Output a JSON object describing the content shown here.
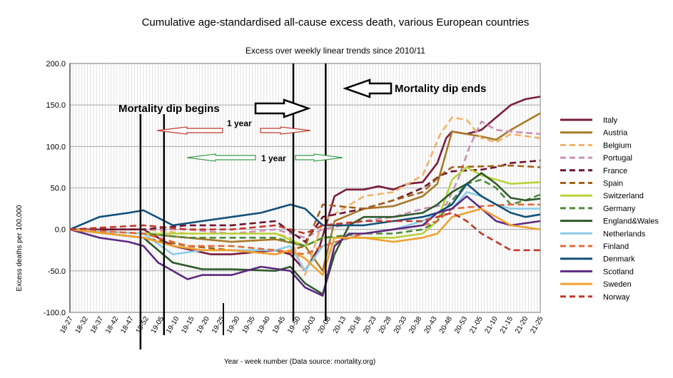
{
  "chart_data": {
    "type": "line",
    "title": "Cumulative age-standardised all-cause excess death, various European countries",
    "subtitle": "Excess over weekly linear trends since 2010/11",
    "ylabel": "Excess deaths per 100,000",
    "xlabel": "Year - week number   (Data source: mortality.org)",
    "ylim": [
      -100,
      200
    ],
    "y_ticks": [
      "200.0",
      "150.0",
      "100.0",
      "50.0",
      "0.0",
      "-50.0",
      "-100.0"
    ],
    "x_tick_labels": [
      "18-27",
      "18-32",
      "18-37",
      "18-42",
      "18-47",
      "18-52",
      "19-05",
      "19-10",
      "19-15",
      "19-20",
      "19-25",
      "19-30",
      "19-35",
      "19-40",
      "19-45",
      "19-50",
      "20-03",
      "20-08",
      "20-13",
      "20-18",
      "20-23",
      "20-28",
      "20-33",
      "20-38",
      "20-43",
      "20-48",
      "20-53",
      "21-05",
      "21-10",
      "21-15",
      "21-20",
      "21-25"
    ],
    "grid": true,
    "legend_position": "right",
    "annotations": {
      "dip_begins": "Mortality dip begins",
      "dip_ends": "Mortality dip ends",
      "one_year_a": "1 year",
      "one_year_b": "1 year"
    },
    "series": [
      {
        "name": "Italy",
        "color": "#7b1c3e",
        "dash": false,
        "points": [
          [
            0,
            0
          ],
          [
            25,
            0
          ],
          [
            35,
            -20
          ],
          [
            48,
            -30
          ],
          [
            55,
            -30
          ],
          [
            70,
            -25
          ],
          [
            75,
            -30
          ],
          [
            80,
            -50
          ],
          [
            85,
            -20
          ],
          [
            90,
            40
          ],
          [
            94,
            48
          ],
          [
            100,
            48
          ],
          [
            105,
            52
          ],
          [
            110,
            48
          ],
          [
            115,
            55
          ],
          [
            120,
            57
          ],
          [
            125,
            80
          ],
          [
            128,
            110
          ],
          [
            130,
            118
          ],
          [
            135,
            115
          ],
          [
            140,
            120
          ],
          [
            145,
            135
          ],
          [
            150,
            150
          ],
          [
            155,
            157
          ],
          [
            160,
            160
          ]
        ]
      },
      {
        "name": "Austria",
        "color": "#a87a28",
        "dash": false,
        "points": [
          [
            0,
            0
          ],
          [
            25,
            -5
          ],
          [
            40,
            -10
          ],
          [
            55,
            -15
          ],
          [
            70,
            -12
          ],
          [
            80,
            -20
          ],
          [
            86,
            -50
          ],
          [
            90,
            10
          ],
          [
            100,
            25
          ],
          [
            110,
            28
          ],
          [
            120,
            40
          ],
          [
            125,
            55
          ],
          [
            130,
            118
          ],
          [
            140,
            112
          ],
          [
            145,
            108
          ],
          [
            150,
            120
          ],
          [
            160,
            140
          ]
        ]
      },
      {
        "name": "Belgium",
        "color": "#f2b26a",
        "dash": true,
        "points": [
          [
            0,
            0
          ],
          [
            25,
            0
          ],
          [
            40,
            -5
          ],
          [
            55,
            -5
          ],
          [
            70,
            -5
          ],
          [
            75,
            -10
          ],
          [
            80,
            -55
          ],
          [
            86,
            10
          ],
          [
            100,
            40
          ],
          [
            110,
            45
          ],
          [
            120,
            65
          ],
          [
            126,
            115
          ],
          [
            130,
            135
          ],
          [
            135,
            132
          ],
          [
            140,
            110
          ],
          [
            145,
            105
          ],
          [
            150,
            115
          ],
          [
            160,
            110
          ]
        ]
      },
      {
        "name": "Portugal",
        "color": "#c991b6",
        "dash": true,
        "points": [
          [
            0,
            0
          ],
          [
            25,
            0
          ],
          [
            40,
            0
          ],
          [
            55,
            -5
          ],
          [
            70,
            0
          ],
          [
            80,
            -10
          ],
          [
            86,
            0
          ],
          [
            100,
            10
          ],
          [
            110,
            15
          ],
          [
            120,
            25
          ],
          [
            128,
            30
          ],
          [
            132,
            60
          ],
          [
            136,
            100
          ],
          [
            140,
            130
          ],
          [
            145,
            120
          ],
          [
            150,
            118
          ],
          [
            160,
            115
          ]
        ]
      },
      {
        "name": "France",
        "color": "#6e1430",
        "dash": true,
        "points": [
          [
            0,
            0
          ],
          [
            25,
            0
          ],
          [
            40,
            5
          ],
          [
            55,
            5
          ],
          [
            70,
            10
          ],
          [
            80,
            -15
          ],
          [
            86,
            15
          ],
          [
            100,
            25
          ],
          [
            110,
            35
          ],
          [
            120,
            50
          ],
          [
            126,
            65
          ],
          [
            130,
            70
          ],
          [
            140,
            72
          ],
          [
            145,
            75
          ],
          [
            150,
            80
          ],
          [
            160,
            83
          ]
        ]
      },
      {
        "name": "Spain",
        "color": "#a3621a",
        "dash": true,
        "points": [
          [
            0,
            0
          ],
          [
            25,
            -10
          ],
          [
            40,
            -20
          ],
          [
            55,
            -25
          ],
          [
            70,
            -30
          ],
          [
            80,
            -20
          ],
          [
            86,
            30
          ],
          [
            100,
            25
          ],
          [
            110,
            35
          ],
          [
            120,
            45
          ],
          [
            126,
            65
          ],
          [
            130,
            75
          ],
          [
            140,
            76
          ],
          [
            150,
            77
          ],
          [
            160,
            75
          ]
        ]
      },
      {
        "name": "Switzerland",
        "color": "#b8d33a",
        "dash": false,
        "points": [
          [
            0,
            0
          ],
          [
            25,
            -5
          ],
          [
            40,
            -5
          ],
          [
            55,
            -5
          ],
          [
            70,
            -5
          ],
          [
            80,
            -20
          ],
          [
            86,
            -10
          ],
          [
            100,
            -10
          ],
          [
            110,
            -10
          ],
          [
            120,
            -5
          ],
          [
            125,
            10
          ],
          [
            130,
            60
          ],
          [
            135,
            75
          ],
          [
            140,
            65
          ],
          [
            145,
            60
          ],
          [
            150,
            55
          ],
          [
            160,
            57
          ]
        ]
      },
      {
        "name": "Germany",
        "color": "#4e8a3a",
        "dash": true,
        "points": [
          [
            0,
            0
          ],
          [
            25,
            -5
          ],
          [
            40,
            -10
          ],
          [
            55,
            -10
          ],
          [
            70,
            -10
          ],
          [
            80,
            -20
          ],
          [
            86,
            -10
          ],
          [
            100,
            -5
          ],
          [
            110,
            -5
          ],
          [
            120,
            0
          ],
          [
            125,
            10
          ],
          [
            130,
            35
          ],
          [
            135,
            55
          ],
          [
            140,
            60
          ],
          [
            145,
            50
          ],
          [
            150,
            30
          ],
          [
            155,
            35
          ],
          [
            160,
            42
          ]
        ]
      },
      {
        "name": "England&Wales",
        "color": "#2e5a2a",
        "dash": false,
        "points": [
          [
            0,
            0
          ],
          [
            25,
            -10
          ],
          [
            35,
            -40
          ],
          [
            45,
            -48
          ],
          [
            55,
            -48
          ],
          [
            70,
            -50
          ],
          [
            75,
            -45
          ],
          [
            80,
            -65
          ],
          [
            86,
            -78
          ],
          [
            90,
            -30
          ],
          [
            95,
            5
          ],
          [
            100,
            15
          ],
          [
            110,
            15
          ],
          [
            120,
            20
          ],
          [
            125,
            30
          ],
          [
            130,
            45
          ],
          [
            135,
            55
          ],
          [
            140,
            68
          ],
          [
            145,
            55
          ],
          [
            150,
            38
          ],
          [
            155,
            35
          ],
          [
            160,
            37
          ]
        ]
      },
      {
        "name": "Netherlands",
        "color": "#8ecbe6",
        "dash": false,
        "points": [
          [
            0,
            0
          ],
          [
            25,
            -5
          ],
          [
            35,
            -30
          ],
          [
            45,
            -25
          ],
          [
            55,
            -25
          ],
          [
            70,
            -25
          ],
          [
            75,
            -20
          ],
          [
            80,
            -50
          ],
          [
            86,
            -20
          ],
          [
            100,
            -5
          ],
          [
            110,
            0
          ],
          [
            120,
            10
          ],
          [
            125,
            20
          ],
          [
            130,
            25
          ],
          [
            135,
            45
          ],
          [
            140,
            40
          ],
          [
            145,
            30
          ],
          [
            150,
            25
          ],
          [
            160,
            25
          ]
        ]
      },
      {
        "name": "Finland",
        "color": "#e56a3a",
        "dash": true,
        "points": [
          [
            0,
            0
          ],
          [
            25,
            -5
          ],
          [
            40,
            -20
          ],
          [
            55,
            -20
          ],
          [
            70,
            -25
          ],
          [
            80,
            -30
          ],
          [
            86,
            -20
          ],
          [
            100,
            -5
          ],
          [
            110,
            0
          ],
          [
            120,
            5
          ],
          [
            125,
            10
          ],
          [
            130,
            25
          ],
          [
            140,
            28
          ],
          [
            150,
            30
          ],
          [
            160,
            30
          ]
        ]
      },
      {
        "name": "Denmark",
        "color": "#12507a",
        "dash": false,
        "points": [
          [
            0,
            0
          ],
          [
            10,
            15
          ],
          [
            20,
            20
          ],
          [
            25,
            23
          ],
          [
            35,
            5
          ],
          [
            45,
            10
          ],
          [
            55,
            15
          ],
          [
            65,
            20
          ],
          [
            75,
            30
          ],
          [
            80,
            25
          ],
          [
            86,
            5
          ],
          [
            100,
            5
          ],
          [
            110,
            10
          ],
          [
            120,
            15
          ],
          [
            125,
            20
          ],
          [
            130,
            30
          ],
          [
            135,
            55
          ],
          [
            140,
            40
          ],
          [
            145,
            30
          ],
          [
            150,
            20
          ],
          [
            155,
            15
          ],
          [
            160,
            18
          ]
        ]
      },
      {
        "name": "Scotland",
        "color": "#5c2a80",
        "dash": false,
        "points": [
          [
            0,
            0
          ],
          [
            10,
            -10
          ],
          [
            20,
            -15
          ],
          [
            25,
            -20
          ],
          [
            30,
            -40
          ],
          [
            35,
            -50
          ],
          [
            40,
            -60
          ],
          [
            45,
            -55
          ],
          [
            55,
            -55
          ],
          [
            65,
            -45
          ],
          [
            75,
            -50
          ],
          [
            80,
            -70
          ],
          [
            86,
            -80
          ],
          [
            90,
            -20
          ],
          [
            95,
            -5
          ],
          [
            100,
            -5
          ],
          [
            110,
            0
          ],
          [
            120,
            5
          ],
          [
            125,
            20
          ],
          [
            130,
            25
          ],
          [
            135,
            40
          ],
          [
            140,
            25
          ],
          [
            145,
            10
          ],
          [
            150,
            5
          ],
          [
            160,
            10
          ]
        ]
      },
      {
        "name": "Sweden",
        "color": "#f0a030",
        "dash": false,
        "points": [
          [
            0,
            0
          ],
          [
            25,
            -10
          ],
          [
            35,
            -20
          ],
          [
            45,
            -25
          ],
          [
            55,
            -25
          ],
          [
            70,
            -30
          ],
          [
            75,
            -25
          ],
          [
            80,
            -35
          ],
          [
            86,
            -55
          ],
          [
            90,
            -10
          ],
          [
            100,
            -10
          ],
          [
            110,
            -15
          ],
          [
            120,
            -10
          ],
          [
            125,
            -5
          ],
          [
            130,
            15
          ],
          [
            135,
            20
          ],
          [
            140,
            25
          ],
          [
            145,
            15
          ],
          [
            150,
            5
          ],
          [
            160,
            0
          ]
        ]
      },
      {
        "name": "Norway",
        "color": "#c0392b",
        "dash": true,
        "points": [
          [
            0,
            0
          ],
          [
            25,
            5
          ],
          [
            40,
            0
          ],
          [
            55,
            0
          ],
          [
            70,
            5
          ],
          [
            80,
            -5
          ],
          [
            86,
            5
          ],
          [
            100,
            10
          ],
          [
            110,
            10
          ],
          [
            120,
            10
          ],
          [
            125,
            15
          ],
          [
            130,
            20
          ],
          [
            135,
            10
          ],
          [
            140,
            -5
          ],
          [
            145,
            -15
          ],
          [
            150,
            -25
          ],
          [
            160,
            -25
          ]
        ]
      }
    ]
  }
}
